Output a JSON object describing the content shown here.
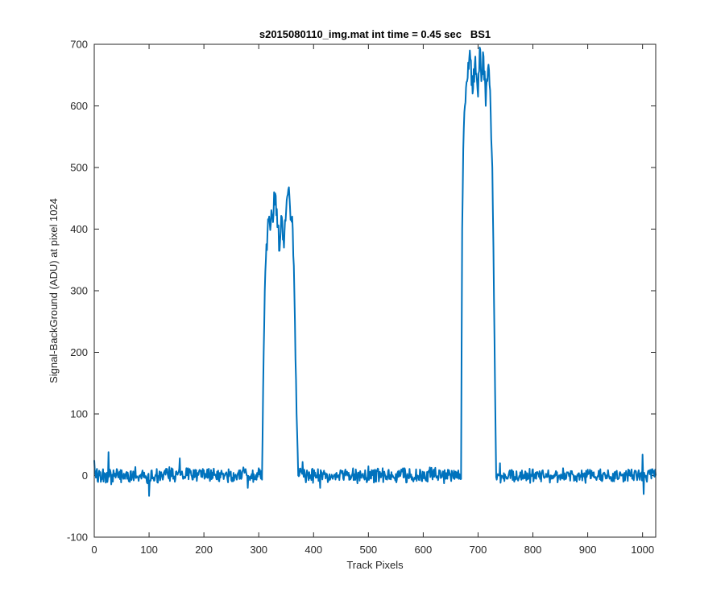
{
  "chart_data": {
    "type": "line",
    "title": "s2015080110_img.mat int time = 0.45 sec   BS1",
    "xlabel": "Track Pixels",
    "ylabel": "Signal-BackGround (ADU) at pixel 1024",
    "xlim": [
      0,
      1024
    ],
    "ylim": [
      -100,
      700
    ],
    "xticks": [
      0,
      100,
      200,
      300,
      400,
      500,
      600,
      700,
      800,
      900,
      1000
    ],
    "yticks": [
      -100,
      0,
      100,
      200,
      300,
      400,
      500,
      600,
      700
    ],
    "grid": false,
    "legend": "none",
    "line_color": "#0072BD",
    "series": [
      {
        "name": "",
        "segments": [
          {
            "x_start": 0,
            "x_end": 306,
            "level": 0,
            "noise_amplitude": 15,
            "note_points": [
              [
                0,
                25
              ],
              [
                26,
                38
              ],
              [
                100,
                -33
              ],
              [
                156,
                28
              ],
              [
                280,
                -20
              ],
              [
                300,
                12
              ]
            ]
          },
          {
            "x": [
              306,
              309,
              311,
              313,
              316,
              320,
              325,
              330,
              335,
              338,
              342,
              346,
              350,
              355,
              358,
              362,
              366,
              369,
              372
            ],
            "y": [
              0,
              200,
              300,
              350,
              395,
              410,
              420,
              458,
              405,
              365,
              420,
              370,
              430,
              468,
              415,
              400,
              250,
              100,
              0
            ]
          },
          {
            "x_start": 372,
            "x_end": 669,
            "level": 0,
            "noise_amplitude": 14,
            "note_points": [
              [
                380,
                22
              ],
              [
                412,
                -20
              ],
              [
                500,
                15
              ],
              [
                560,
                10
              ]
            ]
          },
          {
            "x": [
              669,
              671,
              673,
              676,
              680,
              685,
              690,
              695,
              700,
              703,
              706,
              710,
              714,
              718,
              722,
              726,
              730,
              733
            ],
            "y": [
              0,
              400,
              530,
              600,
              640,
              690,
              620,
              680,
              615,
              695,
              640,
              680,
              600,
              660,
              625,
              500,
              220,
              0
            ]
          },
          {
            "x_start": 733,
            "x_end": 1024,
            "level": 0,
            "noise_amplitude": 13,
            "note_points": [
              [
                740,
                20
              ],
              [
                880,
                -10
              ],
              [
                1000,
                34
              ],
              [
                1002,
                -30
              ],
              [
                1024,
                0
              ]
            ]
          }
        ]
      }
    ]
  }
}
